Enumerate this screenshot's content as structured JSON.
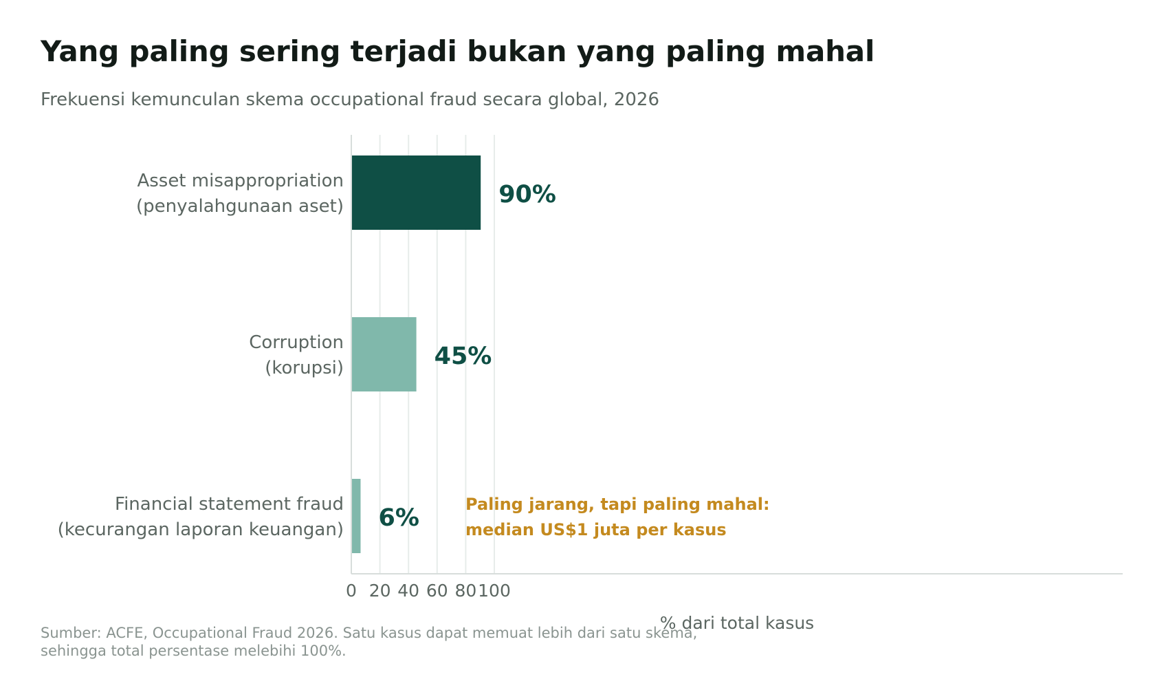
{
  "title": "Yang paling sering terjadi bukan yang paling mahal",
  "subtitle": "Frekuensi kemunculan skema occupational fraud secara global, 2026",
  "chart_data": {
    "type": "bar",
    "orientation": "horizontal",
    "categories": [
      [
        "Asset misappropriation",
        "(penyalahgunaan aset)"
      ],
      [
        "Corruption",
        "(korupsi)"
      ],
      [
        "Financial statement fraud",
        "(kecurangan laporan keuangan)"
      ]
    ],
    "values": [
      90,
      45,
      6
    ],
    "data_labels": [
      "90%",
      "45%",
      "6%"
    ],
    "bar_colors": [
      "#0f4f45",
      "#80b8ab",
      "#80b8ab"
    ],
    "xlabel": "% dari total kasus",
    "ylabel": "",
    "xlim": [
      0,
      108
    ],
    "x_ticks": [
      0,
      20,
      40,
      60,
      80,
      100
    ],
    "grid": "vertical",
    "legend": "none",
    "annotation": {
      "category_index": 2,
      "lines": [
        "Paling jarang, tapi paling mahal:",
        "median US$1 juta per kasus"
      ],
      "color": "#c48a1f"
    }
  },
  "colors": {
    "label_dark": "#0f4f45",
    "axis_text": "#5b6661",
    "grid": "#e7ecea",
    "axis_line": "#d7dddb"
  },
  "footer": {
    "source_lines": [
      "Sumber: ACFE, Occupational Fraud 2026. Satu kasus dapat memuat lebih dari satu skema,",
      "sehingga total persentase melebihi 100%."
    ]
  }
}
